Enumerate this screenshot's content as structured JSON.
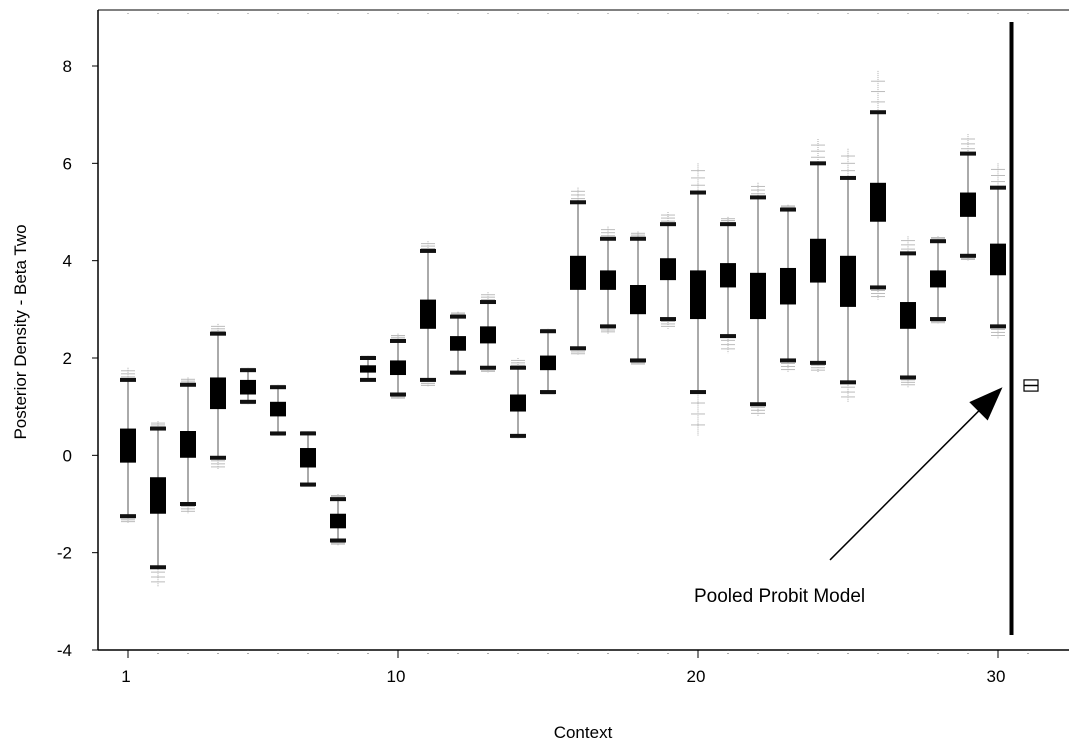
{
  "chart_data": {
    "type": "boxplot",
    "xlabel": "Context",
    "ylabel": "Posterior Density - Beta Two",
    "ylim": [
      -4,
      9
    ],
    "yticks": [
      -4,
      -2,
      0,
      2,
      4,
      6,
      8
    ],
    "xlim": [
      0,
      31.5
    ],
    "xticks": [
      1,
      10,
      20,
      30
    ],
    "annotation": "Pooled Probit Model",
    "contexts": [
      {
        "x": 1,
        "q1": -0.15,
        "q3": 0.55,
        "whisker_lo": -1.25,
        "whisker_hi": 1.55,
        "min": -1.4,
        "max": 1.8
      },
      {
        "x": 2,
        "q1": -1.2,
        "q3": -0.45,
        "whisker_lo": -2.3,
        "whisker_hi": 0.55,
        "min": -2.7,
        "max": 0.7
      },
      {
        "x": 3,
        "q1": -0.05,
        "q3": 0.5,
        "whisker_lo": -1.0,
        "whisker_hi": 1.45,
        "min": -1.2,
        "max": 1.6
      },
      {
        "x": 4,
        "q1": 0.95,
        "q3": 1.6,
        "whisker_lo": -0.05,
        "whisker_hi": 2.5,
        "min": -0.3,
        "max": 2.7
      },
      {
        "x": 5,
        "q1": 1.25,
        "q3": 1.55,
        "whisker_lo": 1.1,
        "whisker_hi": 1.75,
        "min": 1.05,
        "max": 1.8
      },
      {
        "x": 6,
        "q1": 0.8,
        "q3": 1.1,
        "whisker_lo": 0.45,
        "whisker_hi": 1.4,
        "min": 0.4,
        "max": 1.45
      },
      {
        "x": 7,
        "q1": -0.25,
        "q3": 0.15,
        "whisker_lo": -0.6,
        "whisker_hi": 0.45,
        "min": -0.65,
        "max": 0.5
      },
      {
        "x": 8,
        "q1": -1.5,
        "q3": -1.2,
        "whisker_lo": -1.75,
        "whisker_hi": -0.9,
        "min": -1.85,
        "max": -0.8
      },
      {
        "x": 9,
        "q1": 1.7,
        "q3": 1.85,
        "whisker_lo": 1.55,
        "whisker_hi": 2.0,
        "min": 1.55,
        "max": 2.05
      },
      {
        "x": 10,
        "q1": 1.65,
        "q3": 1.95,
        "whisker_lo": 1.25,
        "whisker_hi": 2.35,
        "min": 1.15,
        "max": 2.5
      },
      {
        "x": 11,
        "q1": 2.6,
        "q3": 3.2,
        "whisker_lo": 1.55,
        "whisker_hi": 4.2,
        "min": 1.4,
        "max": 4.4
      },
      {
        "x": 12,
        "q1": 2.15,
        "q3": 2.45,
        "whisker_lo": 1.7,
        "whisker_hi": 2.85,
        "min": 1.65,
        "max": 2.95
      },
      {
        "x": 13,
        "q1": 2.3,
        "q3": 2.65,
        "whisker_lo": 1.8,
        "whisker_hi": 3.15,
        "min": 1.7,
        "max": 3.35
      },
      {
        "x": 14,
        "q1": 0.9,
        "q3": 1.25,
        "whisker_lo": 0.4,
        "whisker_hi": 1.8,
        "min": 0.35,
        "max": 2.0
      },
      {
        "x": 15,
        "q1": 1.75,
        "q3": 2.05,
        "whisker_lo": 1.3,
        "whisker_hi": 2.55,
        "min": 1.25,
        "max": 2.6
      },
      {
        "x": 16,
        "q1": 3.4,
        "q3": 4.1,
        "whisker_lo": 2.2,
        "whisker_hi": 5.2,
        "min": 2.05,
        "max": 5.5
      },
      {
        "x": 17,
        "q1": 3.4,
        "q3": 3.8,
        "whisker_lo": 2.65,
        "whisker_hi": 4.45,
        "min": 2.5,
        "max": 4.7
      },
      {
        "x": 18,
        "q1": 2.9,
        "q3": 3.5,
        "whisker_lo": 1.95,
        "whisker_hi": 4.45,
        "min": 1.85,
        "max": 4.6
      },
      {
        "x": 19,
        "q1": 3.6,
        "q3": 4.05,
        "whisker_lo": 2.8,
        "whisker_hi": 4.75,
        "min": 2.6,
        "max": 5.0
      },
      {
        "x": 20,
        "q1": 2.8,
        "q3": 3.8,
        "whisker_lo": 1.3,
        "whisker_hi": 5.4,
        "min": 0.4,
        "max": 6.0
      },
      {
        "x": 21,
        "q1": 3.45,
        "q3": 3.95,
        "whisker_lo": 2.45,
        "whisker_hi": 4.75,
        "min": 2.1,
        "max": 4.9
      },
      {
        "x": 22,
        "q1": 2.8,
        "q3": 3.75,
        "whisker_lo": 1.05,
        "whisker_hi": 5.3,
        "min": 0.8,
        "max": 5.6
      },
      {
        "x": 23,
        "q1": 3.1,
        "q3": 3.85,
        "whisker_lo": 1.95,
        "whisker_hi": 5.05,
        "min": 1.7,
        "max": 5.15
      },
      {
        "x": 24,
        "q1": 3.55,
        "q3": 4.45,
        "whisker_lo": 1.9,
        "whisker_hi": 6.0,
        "min": 1.7,
        "max": 6.5
      },
      {
        "x": 25,
        "q1": 3.05,
        "q3": 4.1,
        "whisker_lo": 1.5,
        "whisker_hi": 5.7,
        "min": 1.1,
        "max": 6.3
      },
      {
        "x": 26,
        "q1": 4.8,
        "q3": 5.6,
        "whisker_lo": 3.45,
        "whisker_hi": 7.05,
        "min": 3.2,
        "max": 7.9
      },
      {
        "x": 27,
        "q1": 2.6,
        "q3": 3.15,
        "whisker_lo": 1.6,
        "whisker_hi": 4.15,
        "min": 1.4,
        "max": 4.5
      },
      {
        "x": 28,
        "q1": 3.45,
        "q3": 3.8,
        "whisker_lo": 2.8,
        "whisker_hi": 4.4,
        "min": 2.7,
        "max": 4.5
      },
      {
        "x": 29,
        "q1": 4.9,
        "q3": 5.4,
        "whisker_lo": 4.1,
        "whisker_hi": 6.2,
        "min": 4.0,
        "max": 6.6
      },
      {
        "x": 30,
        "q1": 3.7,
        "q3": 4.35,
        "whisker_lo": 2.65,
        "whisker_hi": 5.5,
        "min": 2.4,
        "max": 6.0
      }
    ],
    "pooled": {
      "x": 31.1,
      "q1": 1.37,
      "q3": 1.5,
      "whisker_lo": 1.32,
      "whisker_hi": 1.55
    },
    "divider_x": 30.45,
    "arrow": {
      "from": [
        24.4,
        -2.15
      ],
      "to": [
        30.15,
        1.4
      ]
    }
  }
}
